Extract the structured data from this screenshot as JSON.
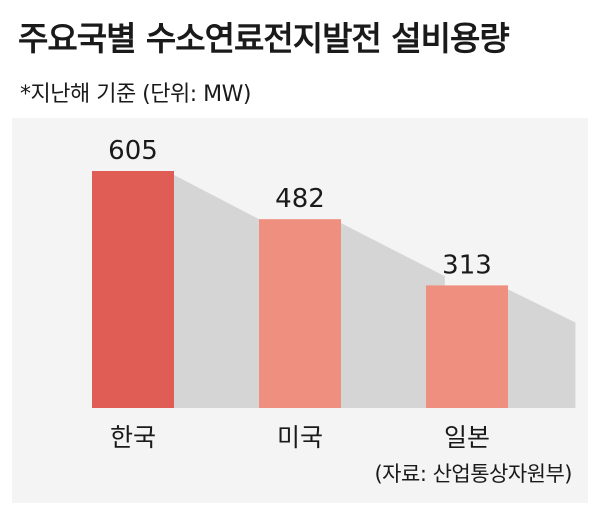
{
  "title": "주요국별 수소연료전지발전 설비용량",
  "subtitle": "*지난해 기준 (단위: MW)",
  "source": "(자료: 산업통상자원부)",
  "colors": {
    "highlight_bar": "#e05d55",
    "bar": "#ef8f7f",
    "shadow": "#cfcfcf",
    "panel": "#f4f4f4"
  },
  "chart_data": {
    "type": "bar",
    "title": "주요국별 수소연료전지발전 설비용량",
    "subtitle": "*지난해 기준 (단위: MW)",
    "categories": [
      "한국",
      "미국",
      "일본"
    ],
    "values": [
      605,
      482,
      313
    ],
    "ylim": [
      0,
      605
    ],
    "grid": false,
    "legend": "none"
  }
}
